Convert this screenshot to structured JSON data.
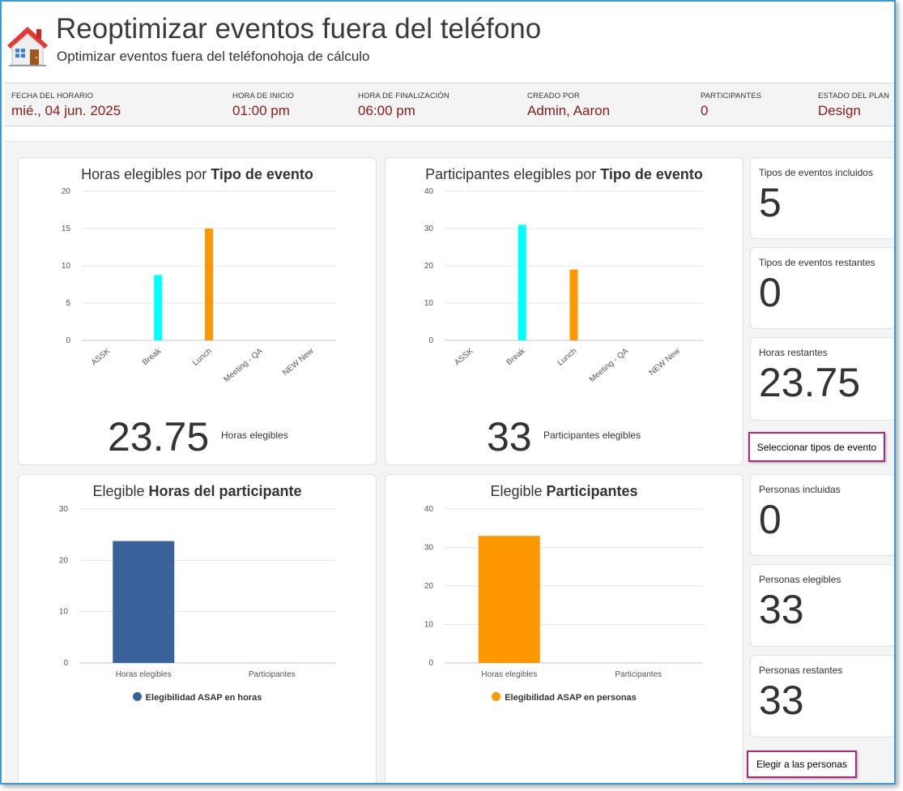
{
  "header": {
    "title": "Reoptimizar eventos fuera del teléfono",
    "subtitle": "Optimizar eventos fuera del teléfonohoja de cálculo",
    "icon": "house-icon"
  },
  "info": [
    {
      "label": "FECHA DEL HORARIO",
      "value": "mié., 04 jun. 2025"
    },
    {
      "label": "HORA DE INICIO",
      "value": "01:00 pm"
    },
    {
      "label": "HORA DE FINALIZACIÓN",
      "value": "06:00 pm"
    },
    {
      "label": "CREADO POR",
      "value": "Admin, Aaron"
    },
    {
      "label": "PARTICIPANTES",
      "value": "0"
    },
    {
      "label": "ESTADO DEL PLAN",
      "value": "Design"
    }
  ],
  "charts": {
    "hours_by_type": {
      "title_plain": "Horas elegibles por ",
      "title_bold": "Tipo de evento",
      "big_value": "23.75",
      "big_label": "Horas elegibles"
    },
    "participants_by_type": {
      "title_plain": "Participantes elegibles por ",
      "title_bold": "Tipo de evento",
      "big_value": "33",
      "big_label": "Participantes elegibles"
    },
    "participant_hours": {
      "title_plain": "Elegible ",
      "title_bold": "Horas del participante",
      "legend": "Elegibilidad ASAP en horas"
    },
    "participants": {
      "title_plain": "Elegible ",
      "title_bold": "Participantes",
      "legend": "Elegibilidad ASAP en personas"
    }
  },
  "chart_data": [
    {
      "type": "bar",
      "title": "Horas elegibles por Tipo de evento",
      "categories": [
        "ASSK",
        "Break",
        "Lunch",
        "Meeting - QA",
        "NEW New"
      ],
      "values": [
        0,
        8.75,
        15,
        0,
        0
      ],
      "colors": [
        "#00ffff",
        "#00ffff",
        "#ff9800",
        "#ff9800",
        "#ff9800"
      ],
      "yticks": [
        0,
        5,
        10,
        15,
        20
      ],
      "ylim": [
        0,
        20
      ],
      "grid": true
    },
    {
      "type": "bar",
      "title": "Participantes elegibles por Tipo de evento",
      "categories": [
        "ASSK",
        "Break",
        "Lunch",
        "Meeting - QA",
        "NEW New"
      ],
      "values": [
        0,
        31,
        19,
        0,
        0
      ],
      "colors": [
        "#00ffff",
        "#00ffff",
        "#ff9800",
        "#ff9800",
        "#ff9800"
      ],
      "yticks": [
        0,
        10,
        20,
        30,
        40
      ],
      "ylim": [
        0,
        40
      ],
      "grid": true
    },
    {
      "type": "bar",
      "title": "Elegible Horas del participante",
      "categories": [
        "Horas elegibles",
        "Participantes"
      ],
      "values": [
        23.75,
        0
      ],
      "colors": [
        "#3b619c",
        "#3b619c"
      ],
      "yticks": [
        0,
        10,
        20,
        30
      ],
      "ylim": [
        0,
        30
      ],
      "grid": true,
      "series": [
        {
          "name": "Elegibilidad ASAP en horas",
          "values": [
            23.75,
            0
          ]
        }
      ],
      "legend_placement": "bottom"
    },
    {
      "type": "bar",
      "title": "Elegible Participantes",
      "categories": [
        "Horas elegibles",
        "Participantes"
      ],
      "values": [
        33,
        0
      ],
      "colors": [
        "#ff9800",
        "#ff9800"
      ],
      "yticks": [
        0,
        10,
        20,
        30,
        40
      ],
      "ylim": [
        0,
        40
      ],
      "grid": true,
      "series": [
        {
          "name": "Elegibilidad ASAP en personas",
          "values": [
            33,
            0
          ]
        }
      ],
      "legend_placement": "bottom"
    }
  ],
  "stats": [
    {
      "label": "Tipos de eventos incluidos",
      "value": "5"
    },
    {
      "label": "Tipos de eventos restantes",
      "value": "0"
    },
    {
      "label": "Horas restantes",
      "value": "23.75"
    },
    {
      "label": "Personas incluidas",
      "value": "0"
    },
    {
      "label": "Personas elegibles",
      "value": "33"
    },
    {
      "label": "Personas restantes",
      "value": "33"
    }
  ],
  "buttons": {
    "select_event_types": "Seleccionar tipos de evento",
    "choose_people": "Elegir a las personas"
  },
  "colors": {
    "accent_value": "#8b1a1a",
    "button_border": "#b0267a",
    "frame_border": "#3a9bd5"
  }
}
